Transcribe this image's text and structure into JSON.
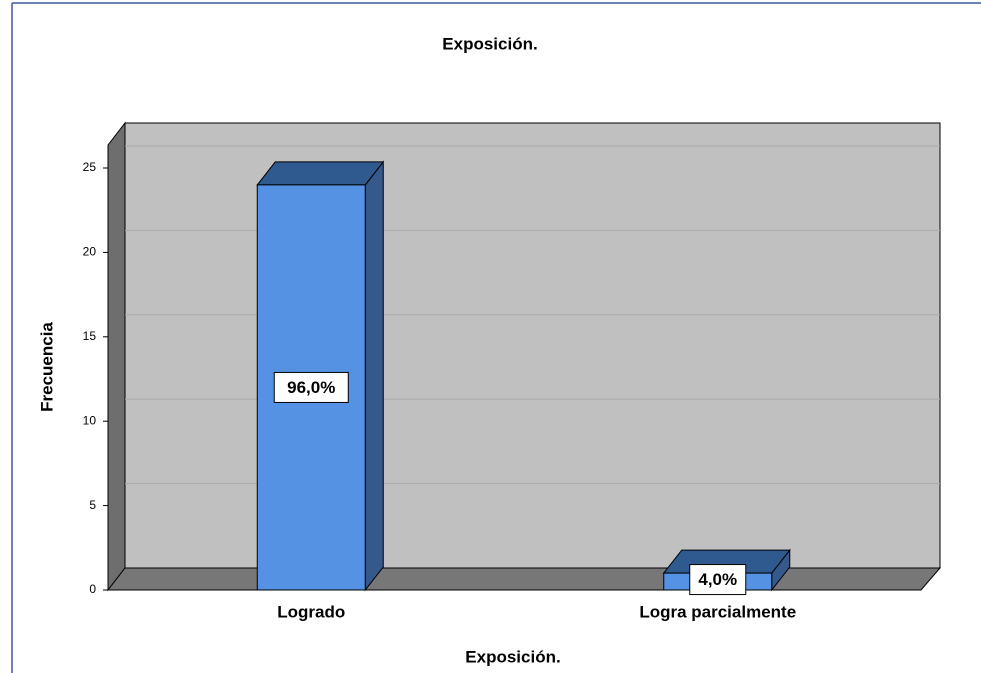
{
  "chart_data": {
    "type": "bar3d",
    "title": "Exposición.",
    "x_label": "Exposición.",
    "y_label": "Frecuencia",
    "categories": [
      "Logrado",
      "Logra parcialmente"
    ],
    "values": [
      24,
      1
    ],
    "percent_labels": [
      "96,0%",
      "4,0%"
    ],
    "color": "#5592e3",
    "ylim": [
      0,
      25
    ],
    "yticks": [
      0,
      5,
      10,
      15,
      20,
      25
    ],
    "grid": true
  }
}
